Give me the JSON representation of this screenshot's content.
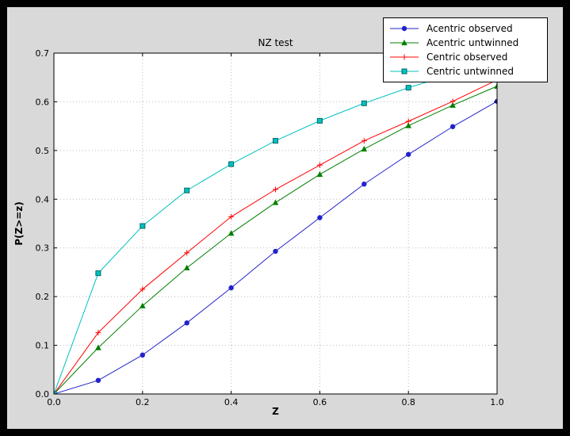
{
  "colors": {
    "window_bg": "#000000",
    "figure_bg": "#d9d9d9",
    "axes_bg": "#ffffff",
    "grid": "#bbbbbb",
    "axis": "#000000",
    "tick_text": "#000000",
    "legend_bg": "#ffffff",
    "legend_border": "#000000"
  },
  "chart_data": {
    "type": "line",
    "title": "NZ test",
    "xlabel": "Z",
    "ylabel": "P(Z>=z)",
    "xlim": [
      0.0,
      1.0
    ],
    "ylim": [
      0.0,
      0.7
    ],
    "xticks": [
      0.0,
      0.2,
      0.4,
      0.6,
      0.8,
      1.0
    ],
    "yticks": [
      0.0,
      0.1,
      0.2,
      0.3,
      0.4,
      0.5,
      0.6,
      0.7
    ],
    "grid": true,
    "legend_position": "upper right",
    "x": [
      0.0,
      0.1,
      0.2,
      0.3,
      0.4,
      0.5,
      0.6,
      0.7,
      0.8,
      0.9,
      1.0
    ],
    "series": [
      {
        "name": "Acentric observed",
        "color": "#2222cc",
        "marker": "circle",
        "values": [
          0.0,
          0.028,
          0.08,
          0.146,
          0.218,
          0.293,
          0.362,
          0.431,
          0.492,
          0.549,
          0.601
        ]
      },
      {
        "name": "Acentric untwinned",
        "color": "#007f00",
        "marker": "triangle",
        "values": [
          0.0,
          0.095,
          0.181,
          0.259,
          0.33,
          0.393,
          0.451,
          0.503,
          0.551,
          0.593,
          0.632
        ]
      },
      {
        "name": "Centric observed",
        "color": "#ff0000",
        "marker": "plus",
        "values": [
          0.0,
          0.126,
          0.215,
          0.29,
          0.364,
          0.42,
          0.47,
          0.52,
          0.56,
          0.601,
          0.645
        ]
      },
      {
        "name": "Centric untwinned",
        "color": "#00c0c0",
        "edge_color": "#006868",
        "marker": "square",
        "values": [
          0.0,
          0.248,
          0.345,
          0.418,
          0.472,
          0.52,
          0.561,
          0.597,
          0.629,
          0.657,
          0.683
        ]
      }
    ]
  }
}
